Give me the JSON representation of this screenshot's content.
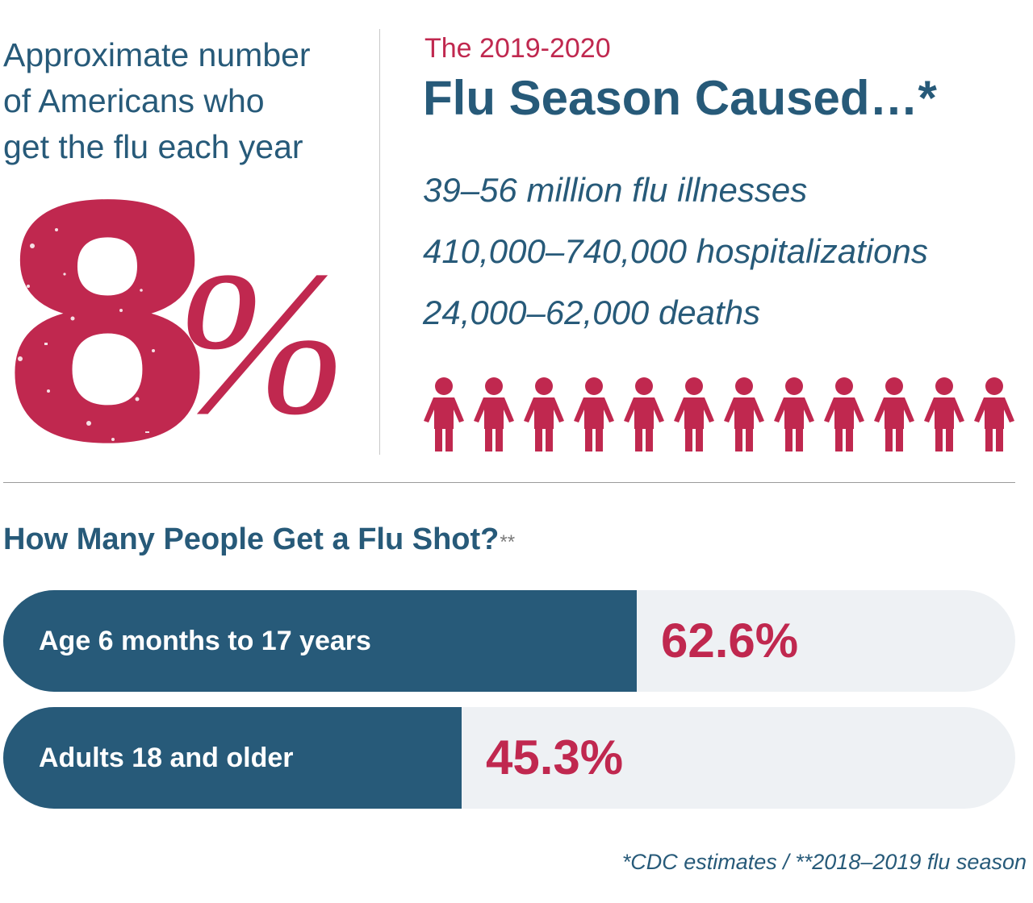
{
  "intro": {
    "text": "Approximate number\nof Americans who\nget the flu each year",
    "stat_number": "8",
    "stat_unit": "%"
  },
  "season": {
    "label": "The 2019-2020",
    "title": "Flu Season Caused…*",
    "impacts": [
      "39–56 million flu illnesses",
      "410,000–740,000 hospitalizations",
      "24,000–62,000 deaths"
    ],
    "person_icon_count": 12,
    "person_icon": "person-icon"
  },
  "colors": {
    "accent_red": "#c0284f",
    "brand_blue": "#275a79",
    "track_grey": "#eef1f4"
  },
  "shots": {
    "title": "How Many People Get a Flu Shot?",
    "title_marker": "**"
  },
  "chart_data": {
    "type": "bar",
    "orientation": "horizontal",
    "title": "How Many People Get a Flu Shot?**",
    "categories": [
      "Age 6 months to 17 years",
      "Adults 18 and older"
    ],
    "values": [
      62.6,
      45.3
    ],
    "value_labels": [
      "62.6%",
      "45.3%"
    ],
    "xlim": [
      0,
      100
    ],
    "grid": false
  },
  "footnote": "*CDC estimates / **2018–2019 flu season"
}
